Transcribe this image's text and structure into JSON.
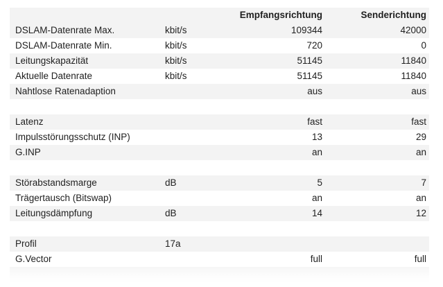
{
  "header": {
    "col_label": "",
    "col_unit": "",
    "col_rx": "Empfangsrichtung",
    "col_tx": "Senderichtung"
  },
  "rows": [
    {
      "label": "DSLAM-Datenrate Max.",
      "unit": "kbit/s",
      "rx": "109344",
      "tx": "42000"
    },
    {
      "label": "DSLAM-Datenrate Min.",
      "unit": "kbit/s",
      "rx": "720",
      "tx": "0"
    },
    {
      "label": "Leitungskapazität",
      "unit": "kbit/s",
      "rx": "51145",
      "tx": "11840"
    },
    {
      "label": "Aktuelle Datenrate",
      "unit": "kbit/s",
      "rx": "51145",
      "tx": "11840"
    },
    {
      "label": "Nahtlose Ratenadaption",
      "unit": "",
      "rx": "aus",
      "tx": "aus"
    },
    {
      "label": "",
      "unit": "",
      "rx": "",
      "tx": ""
    },
    {
      "label": "Latenz",
      "unit": "",
      "rx": "fast",
      "tx": "fast"
    },
    {
      "label": "Impulsstörungsschutz (INP)",
      "unit": "",
      "rx": "13",
      "tx": "29"
    },
    {
      "label": "G.INP",
      "unit": "",
      "rx": "an",
      "tx": "an"
    },
    {
      "label": "",
      "unit": "",
      "rx": "",
      "tx": ""
    },
    {
      "label": "Störabstandsmarge",
      "unit": "dB",
      "rx": "5",
      "tx": "7"
    },
    {
      "label": "Trägertausch (Bitswap)",
      "unit": "",
      "rx": "an",
      "tx": "an"
    },
    {
      "label": "Leitungsdämpfung",
      "unit": "dB",
      "rx": "14",
      "tx": "12"
    },
    {
      "label": "",
      "unit": "",
      "rx": "",
      "tx": ""
    },
    {
      "label": "Profil",
      "unit": "17a",
      "rx": "",
      "tx": ""
    },
    {
      "label": "G.Vector",
      "unit": "",
      "rx": "full",
      "tx": "full"
    },
    {
      "label": "",
      "unit": "",
      "rx": "",
      "tx": ""
    }
  ]
}
